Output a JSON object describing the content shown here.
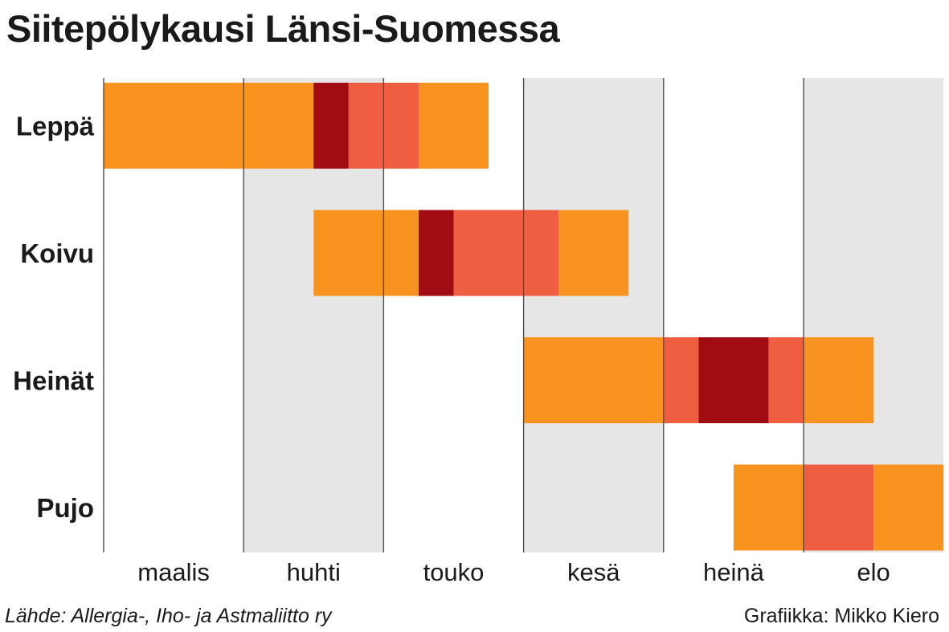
{
  "title": "Siitepölykausi Länsi-Suomessa",
  "source": "Lähde: Allergia-, Iho- ja Astmaliitto ry",
  "credit": "Grafiikka: Mikko Kiero",
  "colors": {
    "low": "#F7931E",
    "medium": "#F05E42",
    "high": "#A00C11",
    "shade": "#E6E6E6",
    "gridline": "#4D4D4D"
  },
  "chart_data": {
    "type": "gantt",
    "title": "Siitepölykausi Länsi-Suomessa",
    "x_axis": {
      "unit": "month",
      "range": [
        0,
        6
      ],
      "labels": [
        "maalis",
        "huhti",
        "touko",
        "kesä",
        "heinä",
        "elo"
      ],
      "shaded_months": [
        "huhti",
        "kesä",
        "elo"
      ]
    },
    "series": [
      {
        "name": "Leppä",
        "segments": [
          {
            "start": 0.0,
            "end": 1.5,
            "level": "low"
          },
          {
            "start": 1.5,
            "end": 1.75,
            "level": "high"
          },
          {
            "start": 1.75,
            "end": 2.25,
            "level": "medium"
          },
          {
            "start": 2.25,
            "end": 2.75,
            "level": "low"
          }
        ]
      },
      {
        "name": "Koivu",
        "segments": [
          {
            "start": 1.5,
            "end": 2.25,
            "level": "low"
          },
          {
            "start": 2.25,
            "end": 2.5,
            "level": "high"
          },
          {
            "start": 2.5,
            "end": 3.25,
            "level": "medium"
          },
          {
            "start": 3.25,
            "end": 3.75,
            "level": "low"
          }
        ]
      },
      {
        "name": "Heinät",
        "segments": [
          {
            "start": 3.0,
            "end": 4.0,
            "level": "low"
          },
          {
            "start": 4.0,
            "end": 4.25,
            "level": "medium"
          },
          {
            "start": 4.25,
            "end": 4.75,
            "level": "high"
          },
          {
            "start": 4.75,
            "end": 5.0,
            "level": "medium"
          },
          {
            "start": 5.0,
            "end": 5.5,
            "level": "low"
          }
        ]
      },
      {
        "name": "Pujo",
        "segments": [
          {
            "start": 4.5,
            "end": 5.0,
            "level": "low"
          },
          {
            "start": 5.0,
            "end": 5.5,
            "level": "medium"
          },
          {
            "start": 5.5,
            "end": 6.0,
            "level": "low"
          }
        ]
      }
    ]
  }
}
